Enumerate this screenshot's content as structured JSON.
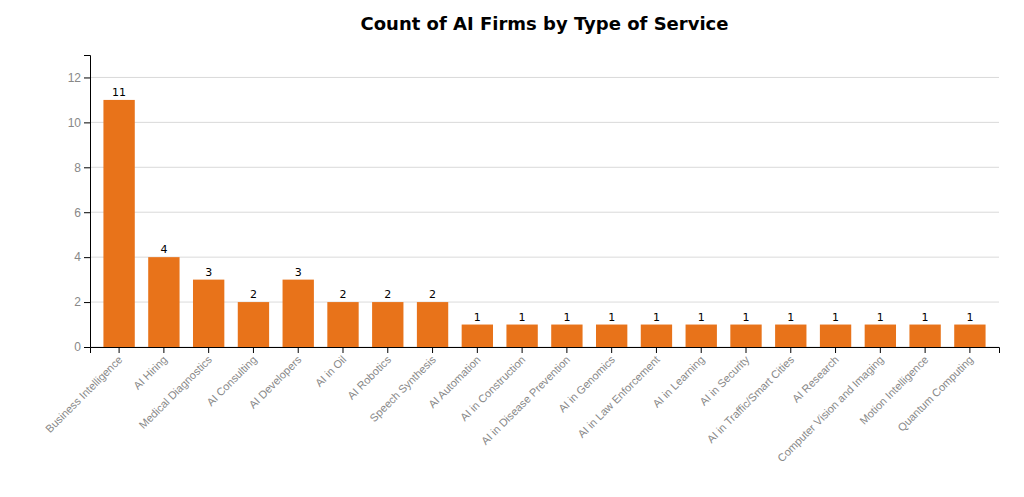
{
  "chart_data": {
    "type": "bar",
    "title": "Count of AI Firms by Type of Service",
    "categories": [
      "Business Intelligence",
      "AI Hiring",
      "Medical Diagnostics",
      "AI Consulting",
      "AI Developers",
      "AI in Oil",
      "AI Robotics",
      "Speech Synthesis",
      "AI Automation",
      "AI in Construction",
      "AI in Disease Prevention",
      "AI in Genomics",
      "AI in Law Enforcement",
      "AI in Learning",
      "AI in Security",
      "AI in Traffic/Smart Cities",
      "AI Research",
      "Computer Vision and Imaging",
      "Motion Intelligence",
      "Quantum Computing"
    ],
    "values": [
      11,
      4,
      3,
      2,
      3,
      2,
      2,
      2,
      1,
      1,
      1,
      1,
      1,
      1,
      1,
      1,
      1,
      1,
      1,
      1
    ],
    "color": "#E8731A",
    "ylim": [
      0,
      13.0
    ],
    "yticks": [
      0,
      2,
      4,
      6,
      8,
      10,
      12
    ],
    "grid": true,
    "data_labels": true
  }
}
